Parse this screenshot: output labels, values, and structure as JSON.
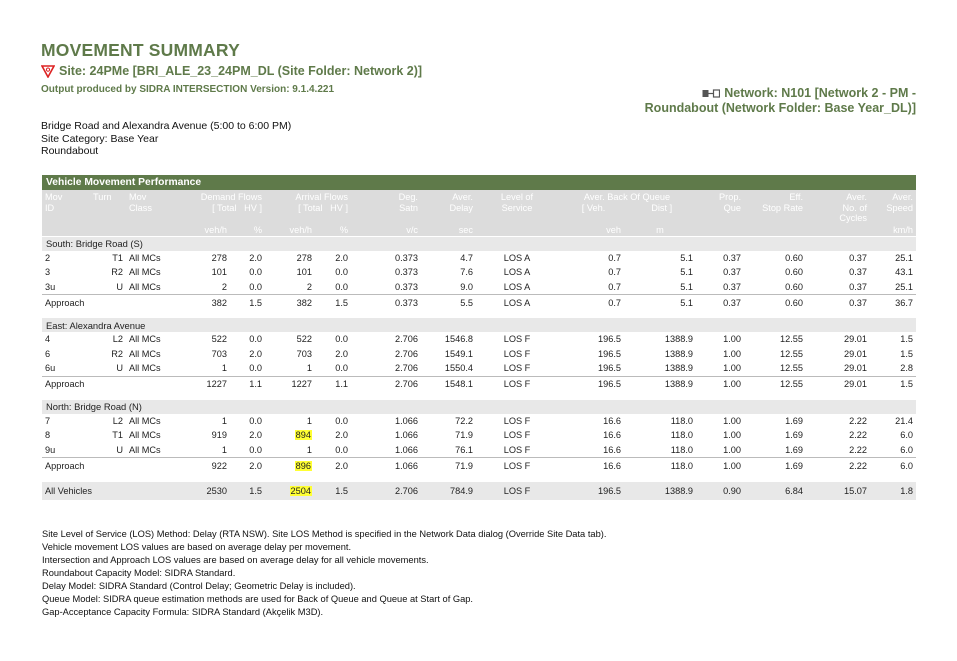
{
  "header": {
    "title": "MOVEMENT SUMMARY",
    "site": "Site: 24PMe [BRI_ALE_23_24PM_DL (Site Folder: Network 2)]",
    "produced": "Output produced by SIDRA INTERSECTION Version: 9.1.4.221",
    "network_line1": "Network: N101 [Network 2 - PM -",
    "network_line2": "Roundabout (Network Folder: Base Year_DL)]"
  },
  "site_info": {
    "line1": "Bridge Road and Alexandra Avenue (5:00 to 6:00 PM)",
    "line2": "Site Category: Base Year",
    "line3": "Roundabout"
  },
  "table": {
    "band_title": "Vehicle Movement Performance",
    "headers": {
      "mov_id_1": "Mov",
      "mov_id_2": "ID",
      "turn": "Turn",
      "mov_class_1": "Mov",
      "mov_class_2": "Class",
      "demand": "Demand Flows",
      "demand_total": "[ Total",
      "demand_hv": "HV ]",
      "arrival": "Arrival Flows",
      "arrival_total": "[ Total",
      "arrival_hv": "HV ]",
      "deg_1": "Deg.",
      "deg_2": "Satn",
      "delay_1": "Aver.",
      "delay_2": "Delay",
      "los_1": "Level of",
      "los_2": "Service",
      "queue": "Aver. Back Of Queue",
      "queue_veh": "[ Veh.",
      "queue_dist": "Dist ]",
      "prop_1": "Prop.",
      "prop_2": "Que",
      "eff_1": "Eff.",
      "eff_2": "Stop Rate",
      "cycles_1": "Aver.",
      "cycles_2": "No. of",
      "cycles_3": "Cycles",
      "speed_1": "Aver.",
      "speed_2": "Speed"
    },
    "units": {
      "demand_total": "veh/h",
      "demand_hv": "%",
      "arrival_total": "veh/h",
      "arrival_hv": "%",
      "deg": "v/c",
      "delay": "sec",
      "queue_veh": "veh",
      "queue_dist": "m",
      "speed": "km/h"
    },
    "sections": [
      {
        "name": "South: Bridge Road (S)",
        "rows": [
          {
            "id": "2",
            "turn": "T1",
            "cls": "All MCs",
            "dt": "278",
            "dhv": "2.0",
            "at": "278",
            "ahv": "2.0",
            "deg": "0.373",
            "delay": "4.7",
            "los": "LOS A",
            "qv": "0.7",
            "qd": "5.1",
            "prop": "0.37",
            "eff": "0.60",
            "cyc": "0.37",
            "spd": "25.1"
          },
          {
            "id": "3",
            "turn": "R2",
            "cls": "All MCs",
            "dt": "101",
            "dhv": "0.0",
            "at": "101",
            "ahv": "0.0",
            "deg": "0.373",
            "delay": "7.6",
            "los": "LOS A",
            "qv": "0.7",
            "qd": "5.1",
            "prop": "0.37",
            "eff": "0.60",
            "cyc": "0.37",
            "spd": "43.1"
          },
          {
            "id": "3u",
            "turn": "U",
            "cls": "All MCs",
            "dt": "2",
            "dhv": "0.0",
            "at": "2",
            "ahv": "0.0",
            "deg": "0.373",
            "delay": "9.0",
            "los": "LOS A",
            "qv": "0.7",
            "qd": "5.1",
            "prop": "0.37",
            "eff": "0.60",
            "cyc": "0.37",
            "spd": "25.1"
          }
        ],
        "approach": {
          "label": "Approach",
          "dt": "382",
          "dhv": "1.5",
          "at": "382",
          "ahv": "1.5",
          "deg": "0.373",
          "delay": "5.5",
          "los": "LOS A",
          "qv": "0.7",
          "qd": "5.1",
          "prop": "0.37",
          "eff": "0.60",
          "cyc": "0.37",
          "spd": "36.7"
        }
      },
      {
        "name": "East: Alexandra Avenue",
        "rows": [
          {
            "id": "4",
            "turn": "L2",
            "cls": "All MCs",
            "dt": "522",
            "dhv": "0.0",
            "at": "522",
            "ahv": "0.0",
            "deg": "2.706",
            "delay": "1546.8",
            "los": "LOS F",
            "qv": "196.5",
            "qd": "1388.9",
            "prop": "1.00",
            "eff": "12.55",
            "cyc": "29.01",
            "spd": "1.5"
          },
          {
            "id": "6",
            "turn": "R2",
            "cls": "All MCs",
            "dt": "703",
            "dhv": "2.0",
            "at": "703",
            "ahv": "2.0",
            "deg": "2.706",
            "delay": "1549.1",
            "los": "LOS F",
            "qv": "196.5",
            "qd": "1388.9",
            "prop": "1.00",
            "eff": "12.55",
            "cyc": "29.01",
            "spd": "1.5"
          },
          {
            "id": "6u",
            "turn": "U",
            "cls": "All MCs",
            "dt": "1",
            "dhv": "0.0",
            "at": "1",
            "ahv": "0.0",
            "deg": "2.706",
            "delay": "1550.4",
            "los": "LOS F",
            "qv": "196.5",
            "qd": "1388.9",
            "prop": "1.00",
            "eff": "12.55",
            "cyc": "29.01",
            "spd": "2.8"
          }
        ],
        "approach": {
          "label": "Approach",
          "dt": "1227",
          "dhv": "1.1",
          "at": "1227",
          "ahv": "1.1",
          "deg": "2.706",
          "delay": "1548.1",
          "los": "LOS F",
          "qv": "196.5",
          "qd": "1388.9",
          "prop": "1.00",
          "eff": "12.55",
          "cyc": "29.01",
          "spd": "1.5"
        }
      },
      {
        "name": "North: Bridge Road (N)",
        "rows": [
          {
            "id": "7",
            "turn": "L2",
            "cls": "All MCs",
            "dt": "1",
            "dhv": "0.0",
            "at": "1",
            "ahv": "0.0",
            "deg": "1.066",
            "delay": "72.2",
            "los": "LOS F",
            "qv": "16.6",
            "qd": "118.0",
            "prop": "1.00",
            "eff": "1.69",
            "cyc": "2.22",
            "spd": "21.4"
          },
          {
            "id": "8",
            "turn": "T1",
            "cls": "All MCs",
            "dt": "919",
            "dhv": "2.0",
            "at": "894",
            "ahv": "2.0",
            "deg": "1.066",
            "delay": "71.9",
            "los": "LOS F",
            "qv": "16.6",
            "qd": "118.0",
            "prop": "1.00",
            "eff": "1.69",
            "cyc": "2.22",
            "spd": "6.0",
            "hl_at": true
          },
          {
            "id": "9u",
            "turn": "U",
            "cls": "All MCs",
            "dt": "1",
            "dhv": "0.0",
            "at": "1",
            "ahv": "0.0",
            "deg": "1.066",
            "delay": "76.1",
            "los": "LOS F",
            "qv": "16.6",
            "qd": "118.0",
            "prop": "1.00",
            "eff": "1.69",
            "cyc": "2.22",
            "spd": "6.0"
          }
        ],
        "approach": {
          "label": "Approach",
          "dt": "922",
          "dhv": "2.0",
          "at": "896",
          "ahv": "2.0",
          "deg": "1.066",
          "delay": "71.9",
          "los": "LOS F",
          "qv": "16.6",
          "qd": "118.0",
          "prop": "1.00",
          "eff": "1.69",
          "cyc": "2.22",
          "spd": "6.0",
          "hl_at": true
        }
      }
    ],
    "all_vehicles": {
      "label": "All Vehicles",
      "dt": "2530",
      "dhv": "1.5",
      "at": "2504",
      "ahv": "1.5",
      "deg": "2.706",
      "delay": "784.9",
      "los": "LOS F",
      "qv": "196.5",
      "qd": "1388.9",
      "prop": "0.90",
      "eff": "6.84",
      "cyc": "15.07",
      "spd": "1.8",
      "hl_at": true
    }
  },
  "notes": [
    "Site Level of Service (LOS) Method: Delay (RTA NSW). Site LOS Method is specified in the Network Data dialog (Override Site Data tab).",
    "Vehicle movement LOS values are based on average delay per movement.",
    "Intersection and Approach LOS values are based on average delay for all vehicle movements.",
    "Roundabout Capacity Model: SIDRA Standard.",
    "Delay Model: SIDRA Standard (Control Delay; Geometric Delay is included).",
    "Queue Model: SIDRA queue estimation methods are used for Back of Queue and Queue at Start of Gap.",
    "Gap-Acceptance Capacity Formula: SIDRA Standard (Akçelik M3D)."
  ],
  "colors": {
    "accent": "#5f7a4a",
    "section_bg": "#e8e8e8",
    "header_bg": "#dcdcdc",
    "highlight": "#ffff33"
  },
  "icons": {
    "site": "roundabout-triangle-icon",
    "network": "network-icon"
  }
}
